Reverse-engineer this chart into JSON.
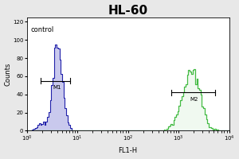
{
  "title": "HL-60",
  "xlabel": "FL1-H",
  "ylabel": "Counts",
  "ylim": [
    0,
    125
  ],
  "xlim_log": [
    1.0,
    10000.0
  ],
  "background_color": "#e8e8e8",
  "plot_bg_color": "#ffffff",
  "blue_color": "#2222aa",
  "blue_fill_color": "#6666cc",
  "green_color": "#44bb44",
  "control_label": "control",
  "m1_label": "M1",
  "m2_label": "M2",
  "title_fontsize": 11,
  "axis_fontsize": 6,
  "label_fontsize": 6,
  "tick_fontsize": 5,
  "blue_peak_log": 0.62,
  "blue_peak_sigma": 0.1,
  "blue_peak_height": 95,
  "green_peak_log": 3.25,
  "green_peak_sigma": 0.17,
  "green_peak_height": 68,
  "m1_x1_log": 0.28,
  "m1_x2_log": 0.85,
  "m1_y": 55,
  "m2_x1_log": 2.85,
  "m2_x2_log": 3.72,
  "m2_y": 42
}
